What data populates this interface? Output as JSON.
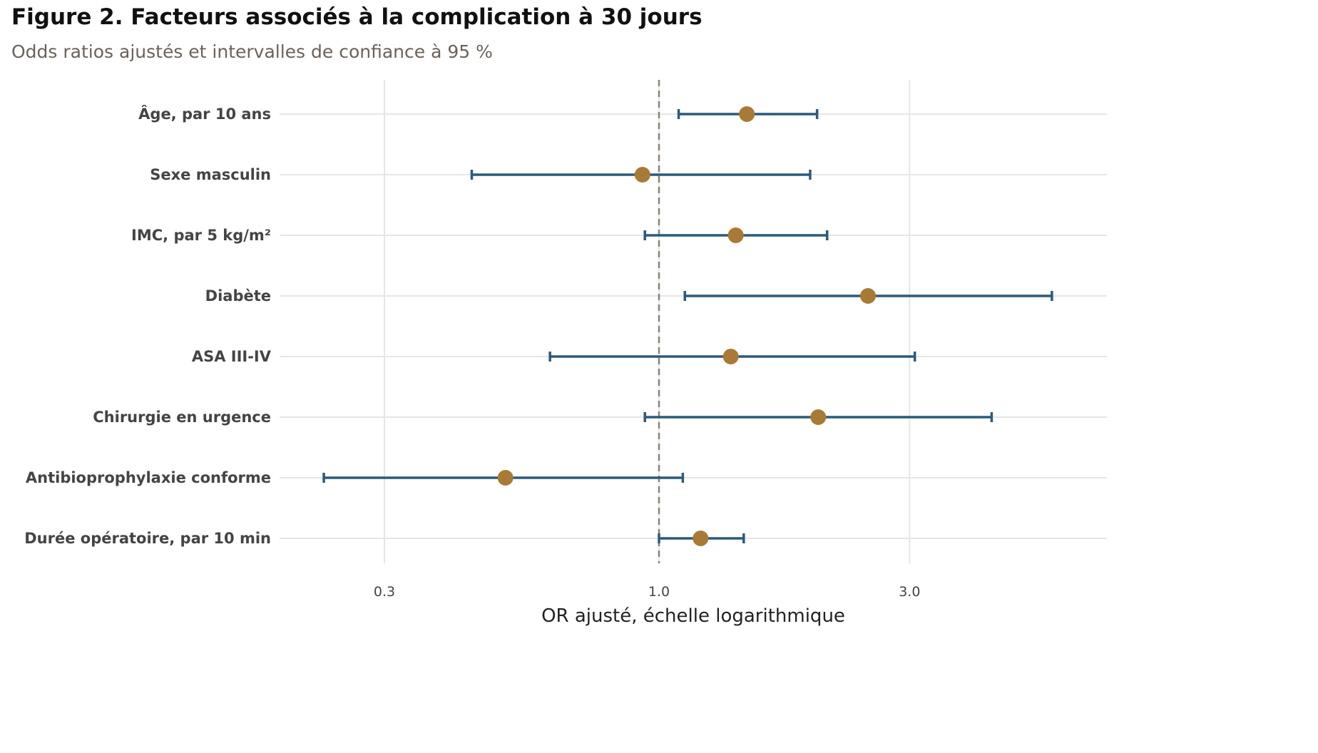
{
  "title": "Figure 2. Facteurs associés à la complication à 30 jours",
  "subtitle": "Odds ratios ajustés et intervalles de confiance à 95 %",
  "chart_data": {
    "type": "scatter",
    "subtype": "forest-plot",
    "x_scale": "log",
    "xlabel": "OR ajusté, échelle logarithmique",
    "xlim": [
      0.2,
      6.5
    ],
    "x_ticks": [
      0.3,
      1.0,
      3.0
    ],
    "x_tick_labels": [
      "0.3",
      "1.0",
      "3.0"
    ],
    "reference_line": 1.0,
    "grid": true,
    "colors": {
      "point": "#a87a35",
      "ci": "#2c5a7a",
      "reference": "#8a8178",
      "grid": "#e6e6e6"
    },
    "rows": [
      {
        "label": "Âge, par 10 ans",
        "or": 1.47,
        "lower": 1.09,
        "upper": 2.0
      },
      {
        "label": "Sexe masculin",
        "or": 0.93,
        "lower": 0.44,
        "upper": 1.94
      },
      {
        "label": "IMC, par 5 kg/m²",
        "or": 1.4,
        "lower": 0.94,
        "upper": 2.09
      },
      {
        "label": "Diabète",
        "or": 2.5,
        "lower": 1.12,
        "upper": 5.6
      },
      {
        "label": "ASA III-IV",
        "or": 1.37,
        "lower": 0.62,
        "upper": 3.07
      },
      {
        "label": "Chirurgie en urgence",
        "or": 2.01,
        "lower": 0.94,
        "upper": 4.3
      },
      {
        "label": "Antibioprophylaxie conforme",
        "or": 0.51,
        "lower": 0.23,
        "upper": 1.11
      },
      {
        "label": "Durée opératoire, par 10 min",
        "or": 1.2,
        "lower": 1.0,
        "upper": 1.45
      }
    ]
  }
}
